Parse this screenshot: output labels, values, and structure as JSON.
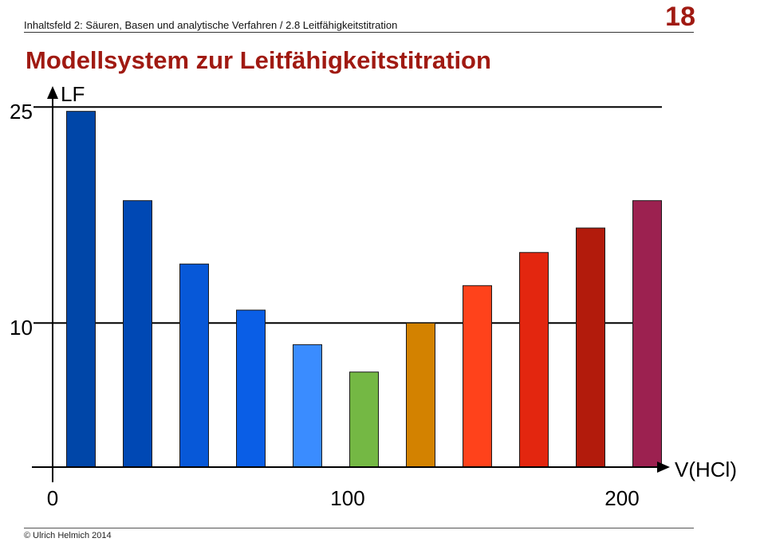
{
  "header": {
    "breadcrumb": "Inhaltsfeld 2: Säuren, Basen und analytische Verfahren / 2.8 Leitfähigkeitstitration",
    "page_number": "18"
  },
  "title": "Modellsystem zur Leitfähigkeitstitration",
  "footer": {
    "copyright": "© Ulrich Helmich 2014"
  },
  "chart_data": {
    "type": "bar",
    "ylabel": "LF",
    "xlabel": "V(HCl)",
    "x": [
      10,
      30,
      50,
      70,
      90,
      110,
      130,
      150,
      170,
      190,
      210
    ],
    "values": [
      24.7,
      18.5,
      14.1,
      10.9,
      8.5,
      6.6,
      10.0,
      12.6,
      14.9,
      16.6,
      18.5
    ],
    "bar_colors": [
      "#0046a8",
      "#0048b4",
      "#0758d8",
      "#0a5ee6",
      "#3a8cff",
      "#74b844",
      "#d38200",
      "#ff421b",
      "#e3260f",
      "#b21b0c",
      "#9c2150"
    ],
    "x_ticks": [
      "0",
      "100",
      "200"
    ],
    "y_ticks": [
      "10",
      "25"
    ],
    "gridlines": [
      10,
      25
    ],
    "grid": true,
    "legend": "none"
  }
}
